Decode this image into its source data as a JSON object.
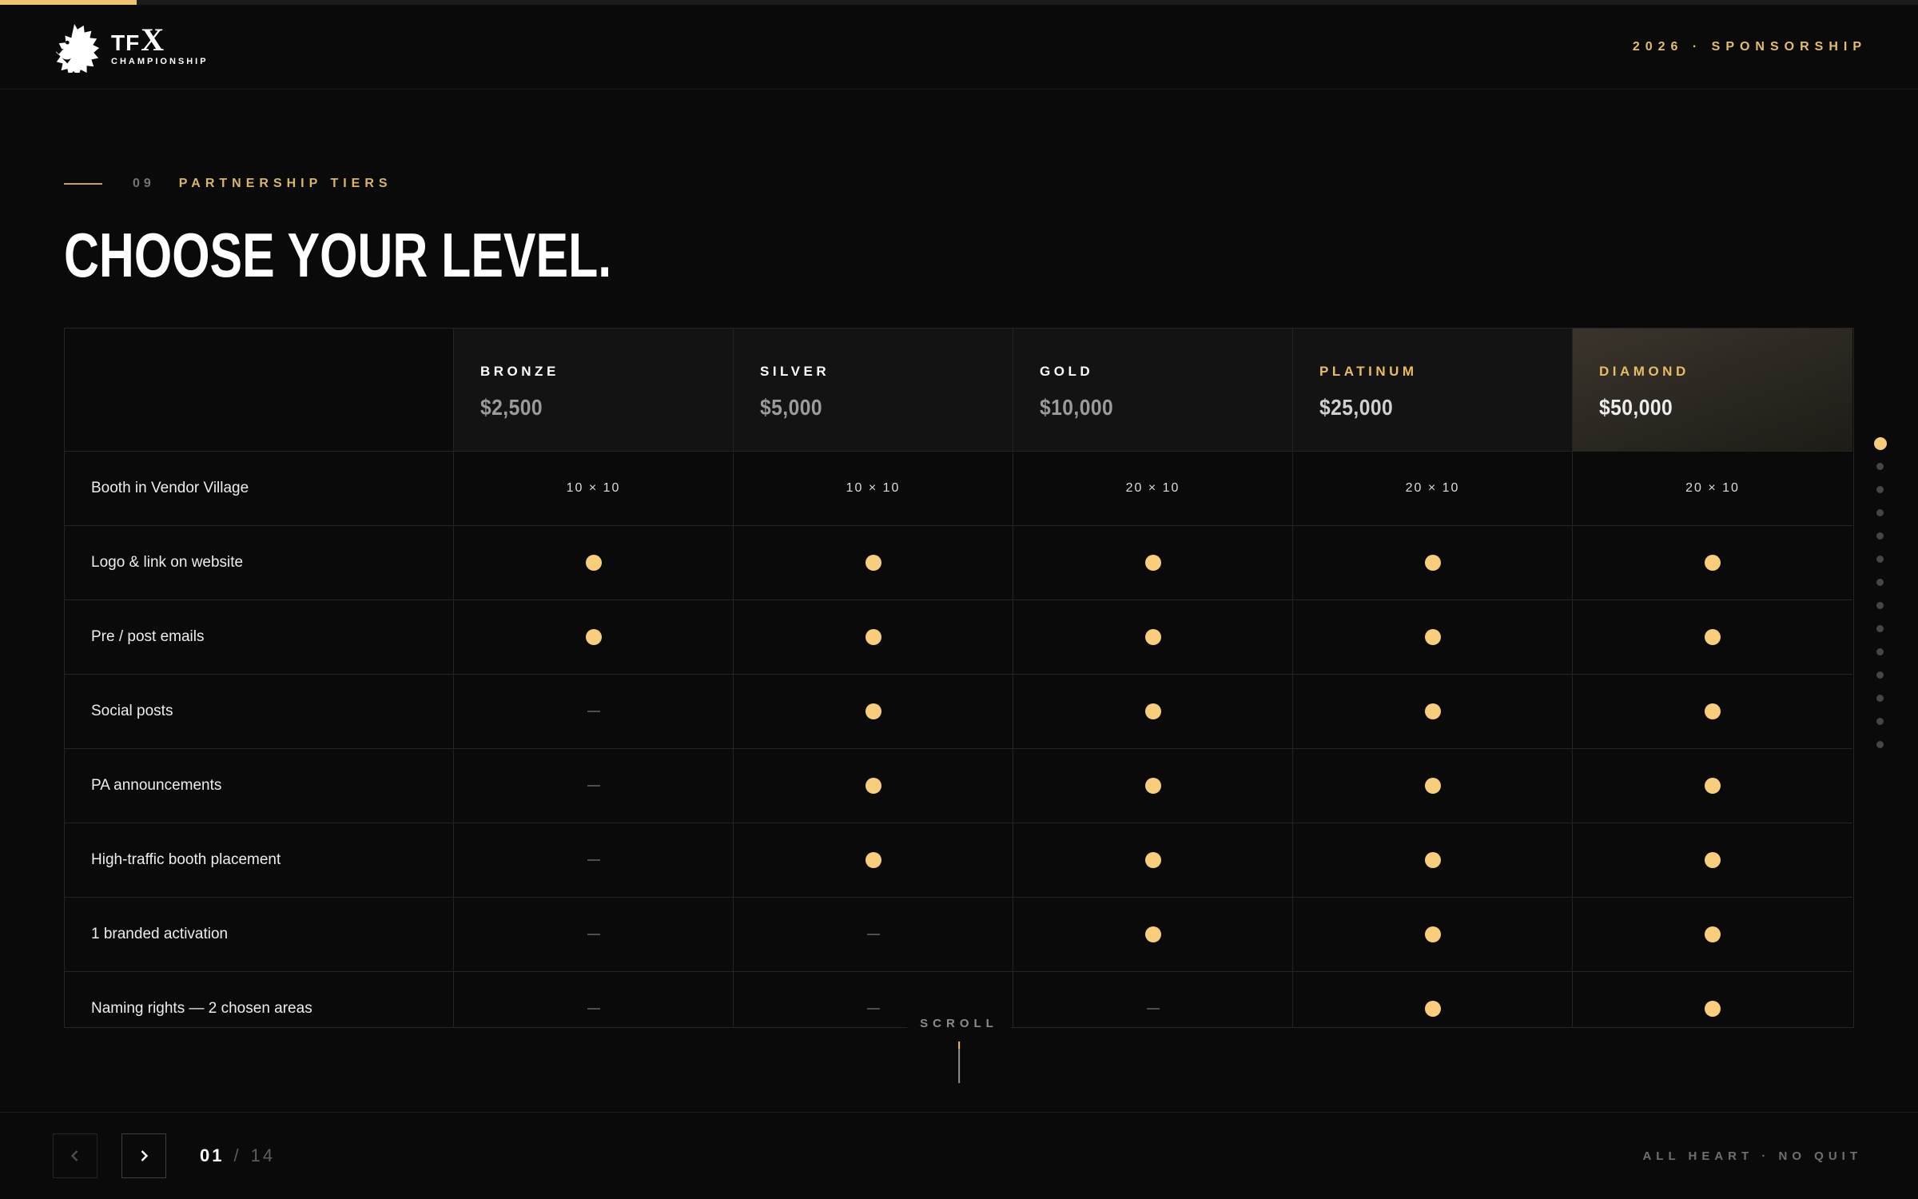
{
  "header": {
    "logo": {
      "brand_tf": "TF",
      "brand_x": "X",
      "subtitle": "CHAMPIONSHIP"
    },
    "right_label": "2026 · SPONSORSHIP"
  },
  "section": {
    "index": "09",
    "label": "PARTNERSHIP TIERS",
    "title": "CHOOSE YOUR LEVEL."
  },
  "table": {
    "tiers": [
      {
        "name": "BRONZE",
        "price": "$2,500",
        "gold_name": false,
        "highlight": false
      },
      {
        "name": "SILVER",
        "price": "$5,000",
        "gold_name": false,
        "highlight": false
      },
      {
        "name": "GOLD",
        "price": "$10,000",
        "gold_name": false,
        "highlight": false
      },
      {
        "name": "PLATINUM",
        "price": "$25,000",
        "gold_name": true,
        "highlight": false
      },
      {
        "name": "DIAMOND",
        "price": "$50,000",
        "gold_name": true,
        "highlight": true
      }
    ],
    "rows": [
      {
        "label": "Booth in Vendor Village",
        "values": [
          "10 × 10",
          "10 × 10",
          "20 × 10",
          "20 × 10",
          "20 × 10"
        ]
      },
      {
        "label": "Logo & link on website",
        "values": [
          "dot",
          "dot",
          "dot",
          "dot",
          "dot"
        ]
      },
      {
        "label": "Pre / post emails",
        "values": [
          "dot",
          "dot",
          "dot",
          "dot",
          "dot"
        ]
      },
      {
        "label": "Social posts",
        "values": [
          "dash",
          "dot",
          "dot",
          "dot",
          "dot"
        ]
      },
      {
        "label": "PA announcements",
        "values": [
          "dash",
          "dot",
          "dot",
          "dot",
          "dot"
        ]
      },
      {
        "label": "High-traffic booth placement",
        "values": [
          "dash",
          "dot",
          "dot",
          "dot",
          "dot"
        ]
      },
      {
        "label": "1 branded activation",
        "values": [
          "dash",
          "dash",
          "dot",
          "dot",
          "dot"
        ]
      },
      {
        "label": "Naming rights — 2 chosen areas",
        "values": [
          "dash",
          "dash",
          "dash",
          "dot",
          "dot"
        ]
      }
    ]
  },
  "scroll_hint": "SCROLL",
  "pagination": {
    "current": "01",
    "separator": "/",
    "total": "14"
  },
  "dot_nav": {
    "count": 14,
    "active_index": 0
  },
  "footer_right": "ALL HEART · NO QUIT",
  "colors": {
    "accent_gold": "#e4bd67",
    "dot_gold": "#f8cd7c",
    "background": "#0a0a0a"
  }
}
